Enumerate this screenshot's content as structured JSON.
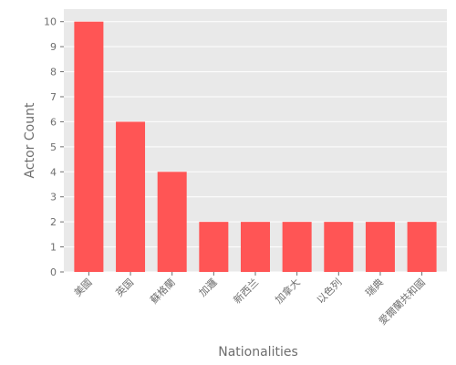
{
  "chart_data": {
    "type": "bar",
    "categories": [
      "美國",
      "英国",
      "蘇格蘭",
      "加邏",
      "新西兰",
      "加拿大",
      "以色列",
      "瑞典",
      "愛爾蘭共和國"
    ],
    "values": [
      10,
      6,
      4,
      2,
      2,
      2,
      2,
      2,
      2
    ],
    "xlabel": "Nationalities",
    "ylabel": "Actor Count",
    "ylim": [
      0,
      10.5
    ],
    "yticks": [
      0,
      1,
      2,
      3,
      4,
      5,
      6,
      7,
      8,
      9,
      10
    ],
    "grid": true,
    "colors": {
      "bar": "#ff5555",
      "plot_background": "#e9e9e9",
      "grid": "#ffffff",
      "text": "#6e6e6e"
    }
  }
}
